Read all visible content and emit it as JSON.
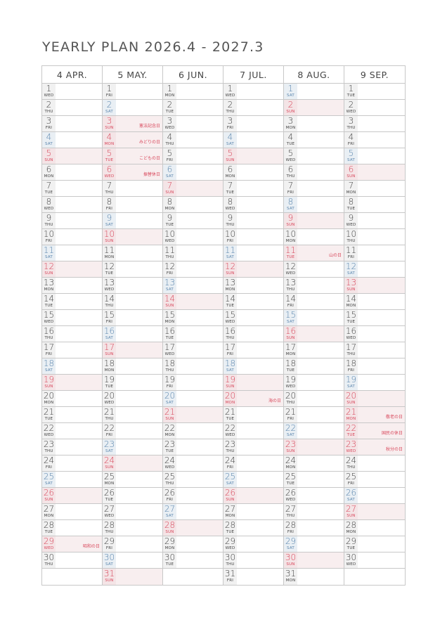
{
  "title": "YEARLY PLAN 2026.4 - 2027.3",
  "weekday_labels": [
    "SUN",
    "MON",
    "TUE",
    "WED",
    "THU",
    "FRI",
    "SAT"
  ],
  "colors": {
    "sunday_holiday": "#d8475b",
    "saturday": "#5a85ad",
    "text": "#444444",
    "border": "#c8c8c8"
  },
  "months": [
    {
      "label": "4 APR.",
      "first_weekday": "WED",
      "days": 30,
      "holidays": {
        "29": "昭和の日"
      }
    },
    {
      "label": "5 MAY.",
      "first_weekday": "FRI",
      "days": 31,
      "holidays": {
        "3": "憲法記念日",
        "4": "みどりの日",
        "5": "こどもの日",
        "6": "振替休日"
      }
    },
    {
      "label": "6 JUN.",
      "first_weekday": "MON",
      "days": 30,
      "holidays": {}
    },
    {
      "label": "7 JUL.",
      "first_weekday": "WED",
      "days": 31,
      "holidays": {
        "20": "海の日"
      }
    },
    {
      "label": "8 AUG.",
      "first_weekday": "SAT",
      "days": 31,
      "holidays": {
        "11": "山の日"
      }
    },
    {
      "label": "9 SEP.",
      "first_weekday": "TUE",
      "days": 30,
      "holidays": {
        "21": "敬老の日",
        "22": "国民の休日",
        "23": "秋分の日"
      }
    }
  ]
}
